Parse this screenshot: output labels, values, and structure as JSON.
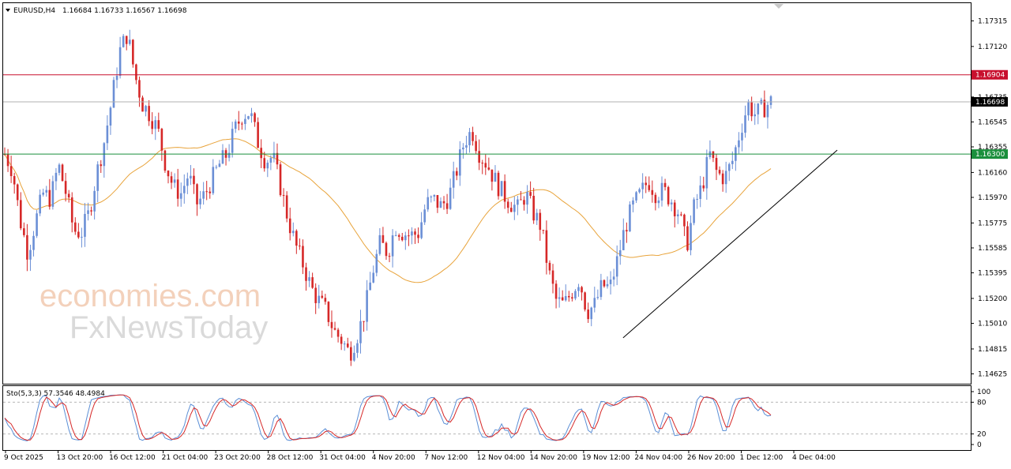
{
  "header": {
    "symbol": "EURUSD,H4",
    "ohlc": "1.16684 1.16733 1.16567 1.16698"
  },
  "watermark": {
    "line1": "economies.com",
    "line2": "FxNewsToday"
  },
  "chart_data": [
    {
      "type": "candlestick",
      "price_axis_ticks": [
        "1.17315",
        "1.17120",
        "1.16735",
        "1.16545",
        "1.16355",
        "1.16160",
        "1.15970",
        "1.15775",
        "1.15585",
        "1.15395",
        "1.15200",
        "1.15010",
        "1.14815",
        "1.14625"
      ],
      "ylim": [
        1.1455,
        1.1745
      ],
      "time_axis_labels": [
        "9 Oct 2025",
        "13 Oct 20:00",
        "16 Oct 12:00",
        "21 Oct 04:00",
        "23 Oct 20:00",
        "28 Oct 12:00",
        "31 Oct 04:00",
        "4 Nov 20:00",
        "7 Nov 12:00",
        "12 Nov 04:00",
        "14 Nov 20:00",
        "19 Nov 12:00",
        "24 Nov 04:00",
        "26 Nov 20:00",
        "1 Dec 12:00",
        "4 Dec 04:00"
      ],
      "horizontal_lines": [
        {
          "label": "1.16904",
          "value": 1.16904,
          "color": "#c8102e"
        },
        {
          "label": "1.16698",
          "value": 1.16698,
          "color": "#b0b0b0",
          "label_bg": "#000000"
        },
        {
          "label": "1.16300",
          "value": 1.163,
          "color": "#1a8f3c",
          "label_bg": "#1a8f3c"
        }
      ],
      "trendline": {
        "start": [
          "19 Nov 12:00",
          1.149
        ],
        "end": [
          "4 Dec 04:00",
          1.1633
        ],
        "color": "#000000"
      },
      "moving_average_color": "#e8a33a",
      "bull_color": "#6b8fd6",
      "bear_color": "#d62828",
      "price_path": [
        1.163,
        1.1618,
        1.158,
        1.1555,
        1.1578,
        1.16,
        1.1596,
        1.1622,
        1.16,
        1.1572,
        1.157,
        1.1585,
        1.1615,
        1.164,
        1.1672,
        1.1708,
        1.1722,
        1.169,
        1.1668,
        1.166,
        1.1648,
        1.1622,
        1.1605,
        1.16,
        1.1615,
        1.1592,
        1.1598,
        1.161,
        1.1622,
        1.163,
        1.1648,
        1.166,
        1.1662,
        1.164,
        1.1625,
        1.1628,
        1.1605,
        1.158,
        1.156,
        1.1545,
        1.1528,
        1.1518,
        1.151,
        1.1495,
        1.1488,
        1.1478,
        1.1492,
        1.151,
        1.154,
        1.1562,
        1.1555,
        1.1575,
        1.157,
        1.1568,
        1.157,
        1.1592,
        1.1595,
        1.159,
        1.1598,
        1.1618,
        1.164,
        1.1648,
        1.163,
        1.1622,
        1.161,
        1.16,
        1.1593,
        1.1588,
        1.16,
        1.1585,
        1.1575,
        1.154,
        1.1518,
        1.1515,
        1.1525,
        1.1535,
        1.151,
        1.1515,
        1.153,
        1.1528,
        1.155,
        1.1575,
        1.159,
        1.16,
        1.161,
        1.16,
        1.1602,
        1.1595,
        1.1585,
        1.156,
        1.159,
        1.1605,
        1.163,
        1.1615,
        1.1612,
        1.1625,
        1.1648,
        1.1668,
        1.166,
        1.1665,
        1.167
      ],
      "stochastic": {
        "label": "Sto(5,3,3) 57.3546 48.4984",
        "k_color": "#5b8fd6",
        "d_color": "#d62828",
        "levels": [
          "100",
          "80",
          "20",
          "0"
        ],
        "levels_dashed": [
          "80",
          "20"
        ],
        "ylim": [
          0,
          100
        ]
      }
    }
  ]
}
